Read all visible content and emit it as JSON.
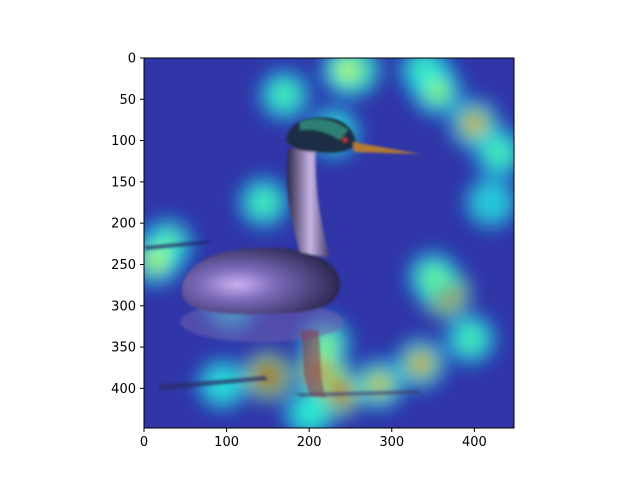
{
  "chart_data": {
    "type": "heatmap",
    "title": "",
    "xlabel": "",
    "ylabel": "",
    "xlim": [
      0,
      448
    ],
    "ylim": [
      448,
      0
    ],
    "xticks": [
      0,
      100,
      200,
      300,
      400
    ],
    "yticks": [
      0,
      50,
      100,
      150,
      200,
      250,
      300,
      350,
      400
    ],
    "xtick_labels": [
      "0",
      "100",
      "200",
      "300",
      "400"
    ],
    "ytick_labels": [
      "0",
      "50",
      "100",
      "150",
      "200",
      "250",
      "300",
      "350",
      "400"
    ],
    "image_subject": "bird",
    "colormap": "jet",
    "background_color": "#3035a8",
    "grid": false,
    "hotspots": [
      {
        "x": 255,
        "y": 15,
        "intensity": 0.85
      },
      {
        "x": 340,
        "y": 15,
        "intensity": 0.45
      },
      {
        "x": 245,
        "y": 15,
        "intensity": 0.6
      },
      {
        "x": 170,
        "y": 45,
        "intensity": 0.45
      },
      {
        "x": 355,
        "y": 40,
        "intensity": 0.55
      },
      {
        "x": 400,
        "y": 80,
        "intensity": 0.75
      },
      {
        "x": 430,
        "y": 115,
        "intensity": 0.45
      },
      {
        "x": 230,
        "y": 90,
        "intensity": 0.35
      },
      {
        "x": 145,
        "y": 175,
        "intensity": 0.45
      },
      {
        "x": 28,
        "y": 225,
        "intensity": 0.55
      },
      {
        "x": 15,
        "y": 245,
        "intensity": 0.6
      },
      {
        "x": 365,
        "y": 285,
        "intensity": 0.95
      },
      {
        "x": 350,
        "y": 265,
        "intensity": 0.5
      },
      {
        "x": 395,
        "y": 340,
        "intensity": 0.45
      },
      {
        "x": 220,
        "y": 345,
        "intensity": 0.55
      },
      {
        "x": 150,
        "y": 385,
        "intensity": 1.0
      },
      {
        "x": 215,
        "y": 380,
        "intensity": 0.9
      },
      {
        "x": 235,
        "y": 405,
        "intensity": 0.95
      },
      {
        "x": 335,
        "y": 370,
        "intensity": 0.75
      },
      {
        "x": 285,
        "y": 395,
        "intensity": 0.7
      },
      {
        "x": 200,
        "y": 430,
        "intensity": 0.4
      },
      {
        "x": 95,
        "y": 395,
        "intensity": 0.35
      },
      {
        "x": 105,
        "y": 300,
        "intensity": 0.35
      },
      {
        "x": 420,
        "y": 175,
        "intensity": 0.3
      }
    ]
  }
}
